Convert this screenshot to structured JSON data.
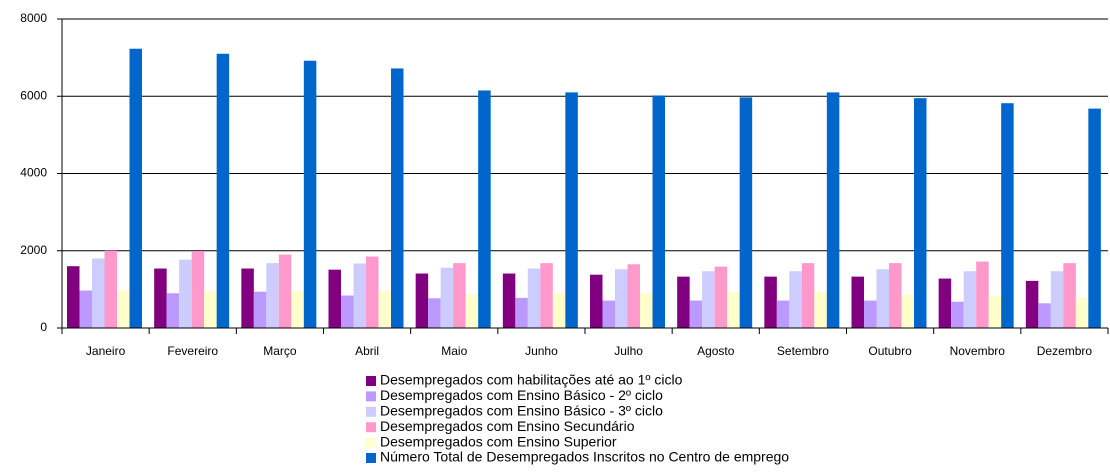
{
  "chart_data": {
    "type": "bar",
    "categories": [
      "Janeiro",
      "Fevereiro",
      "Março",
      "Abril",
      "Maio",
      "Junho",
      "Julho",
      "Agosto",
      "Setembro",
      "Outubro",
      "Novembro",
      "Dezembro"
    ],
    "series": [
      {
        "name": "Desempregados com habilitações até ao 1º ciclo",
        "color": "#800080",
        "values": [
          1600,
          1540,
          1540,
          1510,
          1410,
          1410,
          1380,
          1330,
          1330,
          1330,
          1280,
          1220
        ]
      },
      {
        "name": "Desempregados com Ensino Básico - 2º ciclo",
        "color": "#bb99ff",
        "values": [
          970,
          900,
          940,
          840,
          770,
          780,
          710,
          710,
          710,
          710,
          680,
          640
        ]
      },
      {
        "name": "Desempregados com Ensino Básico - 3º ciclo",
        "color": "#ccccff",
        "values": [
          1800,
          1770,
          1680,
          1670,
          1560,
          1540,
          1520,
          1470,
          1470,
          1520,
          1470,
          1470
        ]
      },
      {
        "name": "Desempregados com Ensino Secundário",
        "color": "#ff99cc",
        "values": [
          2000,
          1990,
          1900,
          1850,
          1680,
          1680,
          1650,
          1590,
          1680,
          1680,
          1720,
          1680
        ]
      },
      {
        "name": "Desempregados com Ensino Superior",
        "color": "#ffffcc",
        "values": [
          970,
          960,
          960,
          960,
          870,
          900,
          900,
          940,
          940,
          860,
          830,
          790
        ]
      },
      {
        "name": "Número Total de Desempregados Inscritos no Centro de emprego",
        "color": "#0066cc",
        "values": [
          7230,
          7100,
          6920,
          6720,
          6150,
          6100,
          6020,
          5970,
          6100,
          5950,
          5820,
          5680
        ]
      }
    ],
    "ylim": [
      0,
      8000
    ],
    "yticks": [
      0,
      2000,
      4000,
      6000,
      8000
    ],
    "grid": true,
    "legend": "bottom"
  }
}
